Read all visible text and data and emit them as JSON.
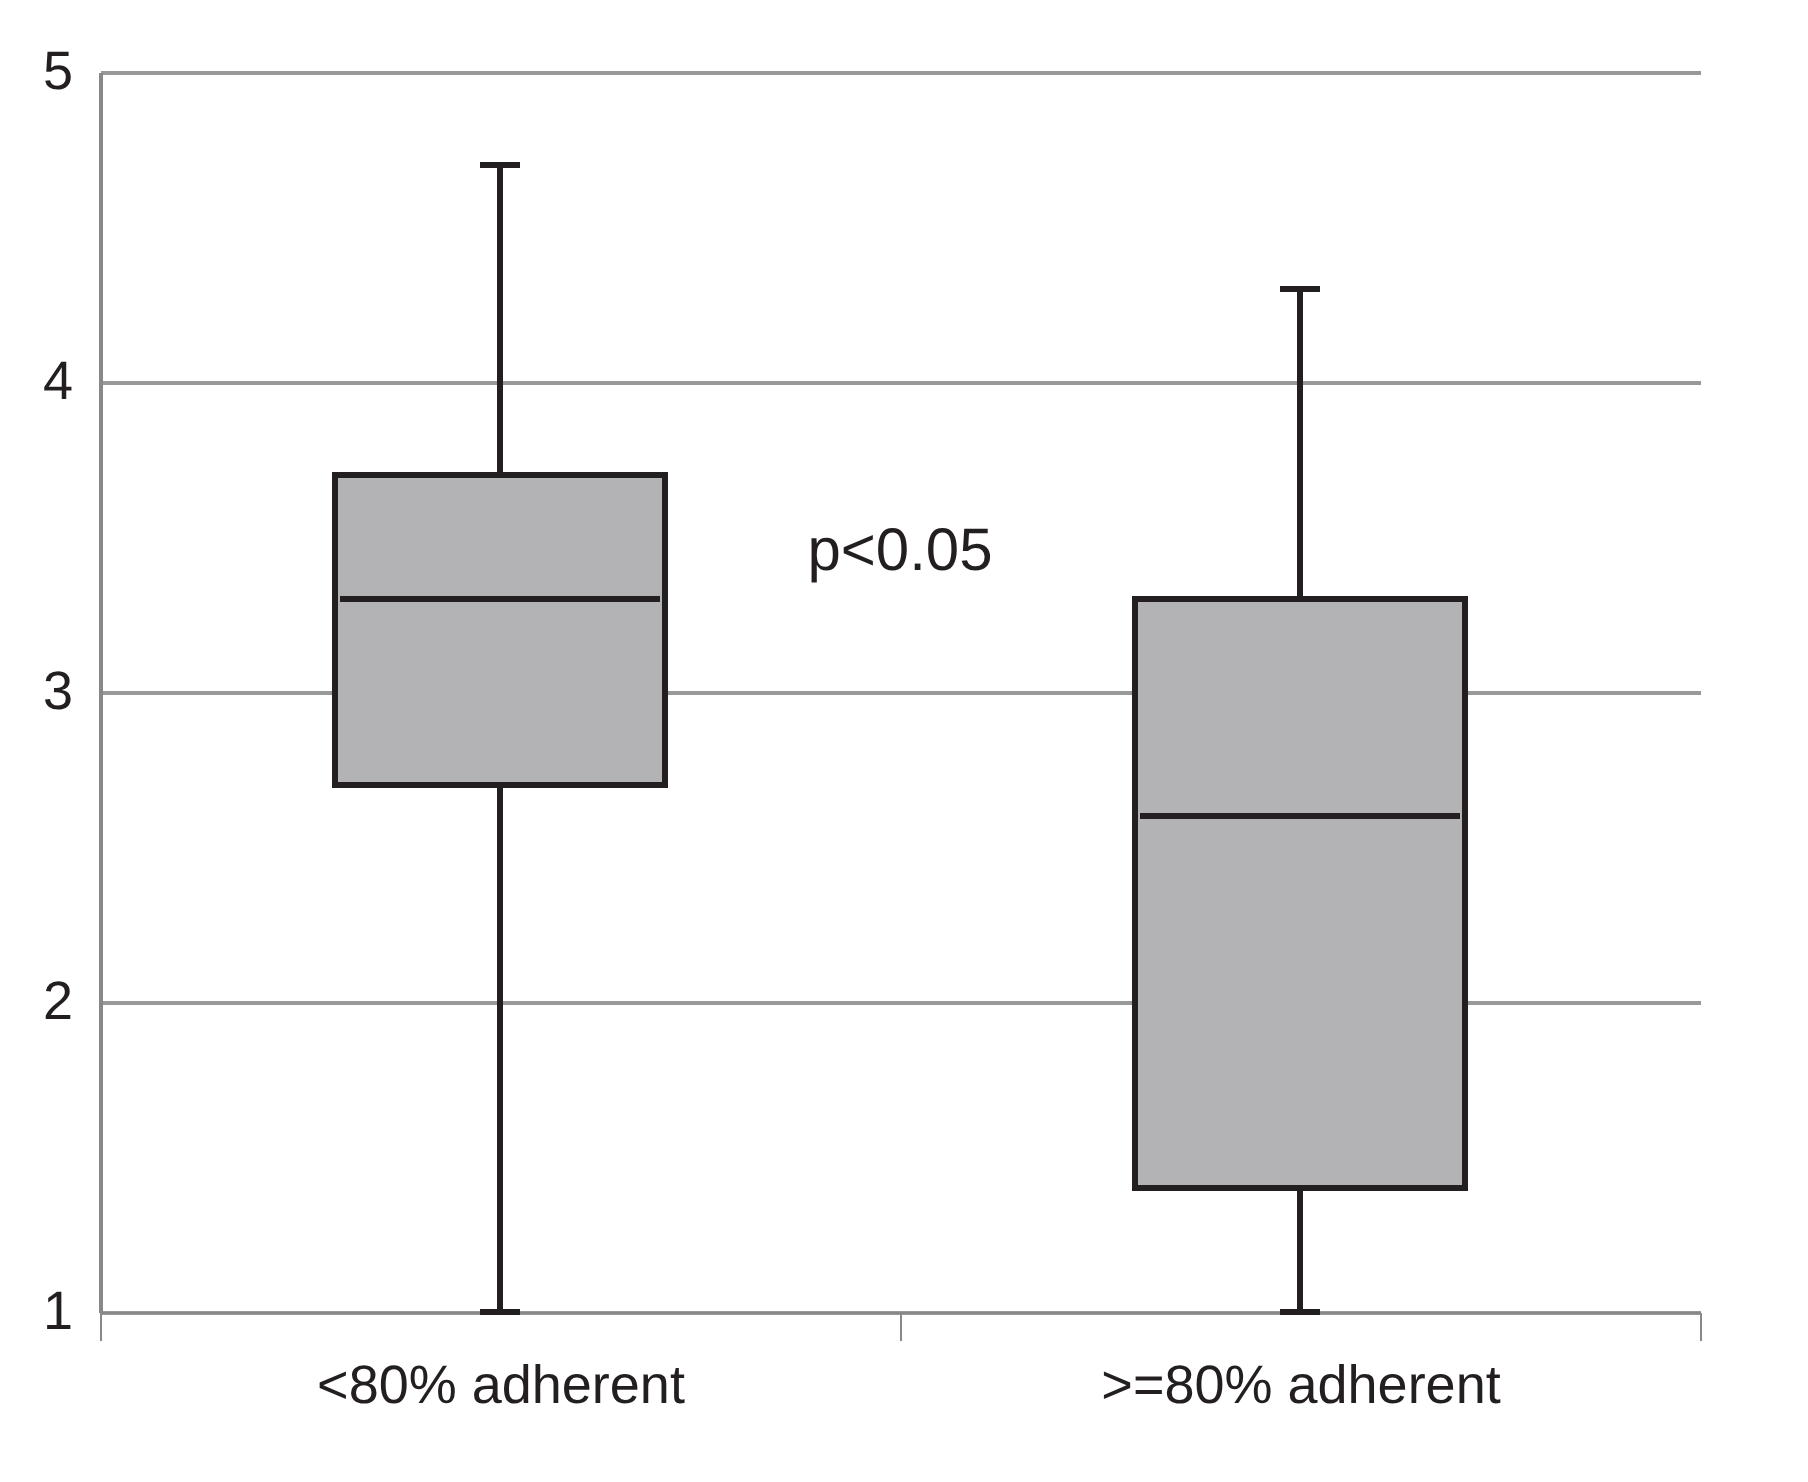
{
  "chart_data": {
    "type": "box",
    "categories": [
      "<80% adherent",
      ">=80% adherent"
    ],
    "boxes": [
      {
        "low": 1.0,
        "q1": 2.7,
        "median": 3.3,
        "q3": 3.7,
        "high": 4.7
      },
      {
        "low": 1.0,
        "q1": 1.4,
        "median": 2.6,
        "q3": 3.3,
        "high": 4.3
      }
    ],
    "color": "#b3b3b5",
    "ylim": [
      1,
      5
    ],
    "yticks": [
      1,
      2,
      3,
      4,
      5
    ],
    "grid": "y",
    "annotations": [
      "p<0.05"
    ]
  }
}
